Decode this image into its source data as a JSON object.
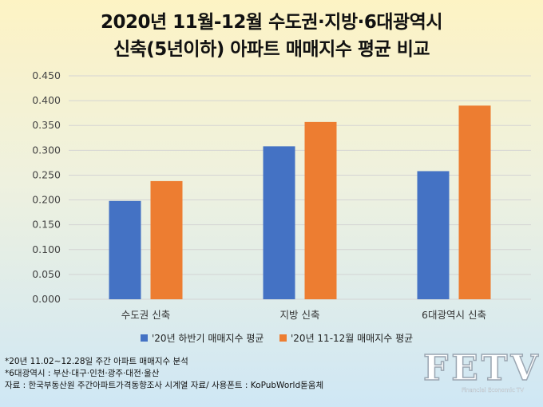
{
  "title_line1": "2020년 11월-12월 수도권·지방·6대광역시",
  "title_line2": "신축(5년이하) 아파트 매매지수 평균 비교",
  "chart_data": {
    "type": "bar",
    "categories": [
      "수도권 신축",
      "지방 신축",
      "6대광역시 신축"
    ],
    "series": [
      {
        "name": "'20년 하반기 매매지수 평균",
        "color": "#4472c4",
        "values": [
          0.198,
          0.308,
          0.258
        ]
      },
      {
        "name": "'20년 11-12월 매매지수 평균",
        "color": "#ed7d31",
        "values": [
          0.238,
          0.357,
          0.39
        ]
      }
    ],
    "ylim": [
      0,
      0.45
    ],
    "yticks": [
      "0.000",
      "0.050",
      "0.100",
      "0.150",
      "0.200",
      "0.250",
      "0.300",
      "0.350",
      "0.400",
      "0.450"
    ],
    "grid": true,
    "legend_position": "bottom"
  },
  "notes": [
    "*20년 11.02~12.28일 주간 아파트 매매지수 분석",
    "*6대광역시 : 부산·대구·인천·광주·대전·울산",
    "자료 : 한국부동산원 주간아파트가격동향조사 시계열 자료/ 사용폰트 : KoPubWorld돋움체"
  ],
  "logo": {
    "text": "FETV",
    "subtitle": "Financial Economic TV"
  }
}
